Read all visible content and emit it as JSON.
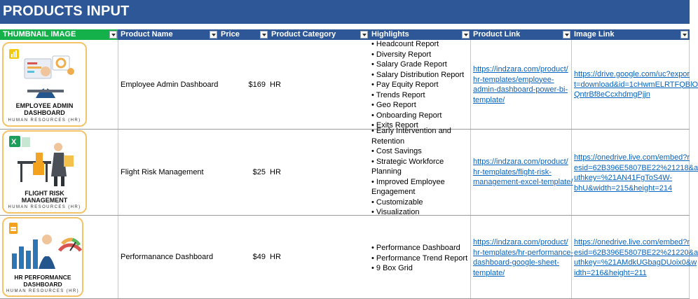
{
  "sheet": {
    "title": "PRODUCTS INPUT"
  },
  "columns": {
    "thumbnail": "THUMBNAIL IMAGE",
    "name": "Product Name",
    "price": "Price",
    "category": "Product Category",
    "highlights": "Highlights",
    "product_link": "Product Link",
    "image_link": "Image Link"
  },
  "rows": [
    {
      "thumb_title_1": "EMPLOYEE ADMIN",
      "thumb_title_2": "DASHBOARD",
      "thumb_sub": "HUMAN RESOURCES (HR)",
      "name": "Employee Admin Dashboard",
      "price": "$169",
      "category": "HR",
      "highlights": [
        "• Headcount Report",
        "• Diversity Report",
        "• Salary Grade Report",
        "• Salary Distribution Report",
        "• Pay Equity Report",
        "• Trends Report",
        "• Geo Report",
        "• Onboarding Report",
        "• Exits Report"
      ],
      "product_link": [
        "https://indzara.com/product/",
        "hr-templates/employee-",
        "admin-dashboard-power-bi-",
        "template/"
      ],
      "image_link": [
        "https://drive.google.com/uc?expor",
        "t=download&id=1cHwmELRTFQBlO",
        "QntrBf8eCcxhdmgPjjn"
      ]
    },
    {
      "thumb_title_1": "FLIGHT RISK",
      "thumb_title_2": "MANAGEMENT",
      "thumb_sub": "HUMAN RESOURCES (HR)",
      "name": "Flight Risk Management",
      "price": "$25",
      "category": "HR",
      "highlights": [
        "• Early Intervention and",
        "Retention",
        "• Cost Savings",
        "• Strategic Workforce",
        "Planning",
        "• Improved Employee",
        "Engagement",
        "• Customizable",
        "• Visualization"
      ],
      "product_link": [
        "https://indzara.com/product/",
        "hr-templates/flight-risk-",
        "management-excel-template/"
      ],
      "image_link": [
        "https://onedrive.live.com/embed?r",
        "esid=62B396E5807BE22%21218&a",
        "uthkey=%21AN41FgToS4W-",
        "bhU&width=215&height=214"
      ]
    },
    {
      "thumb_title_1": "HR PERFORMANCE",
      "thumb_title_2": "DASHBOARD",
      "thumb_sub": "HUMAN RESOURCES (HR)",
      "name": "Performanance Dashboard",
      "price": "$49",
      "category": "HR",
      "highlights": [
        "• Performance Dashboard",
        "• Performance Trend Report",
        "• 9 Box Grid"
      ],
      "product_link": [
        "https://indzara.com/product/",
        "hr-templates/hr-performance-",
        "dashboard-google-sheet-",
        "template/"
      ],
      "image_link": [
        "https://onedrive.live.com/embed?r",
        "esid=62B396E5807BE22%21220&a",
        "uthkey=%21AMdkUGbagDUoix0&w",
        "idth=216&height=211"
      ]
    }
  ],
  "colors": {
    "header": "#2e5797",
    "thumb_header": "#14b14b",
    "card_border": "#f4c367",
    "link": "#0563c1"
  },
  "icons": [
    "filter-dropdown-icon",
    "power-bi-icon",
    "excel-icon",
    "google-sheets-icon"
  ]
}
